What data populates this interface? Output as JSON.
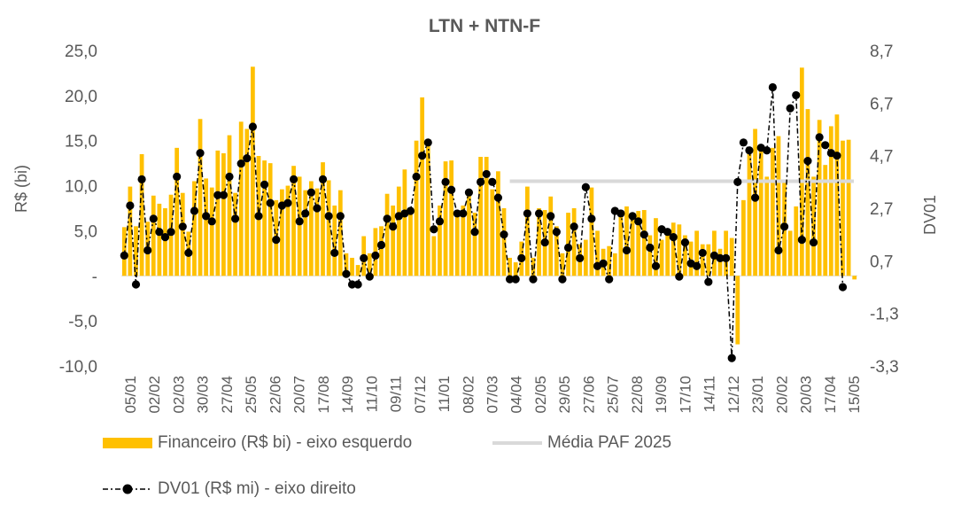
{
  "chart_data": {
    "type": "bar+line",
    "title": "LTN + NTN-F",
    "ylabel_left": "R$ (bi)",
    "ylabel_right": "DV01",
    "y_left_ticks": [
      "25,0",
      "20,0",
      "15,0",
      "10,0",
      "5,0",
      "-",
      "-5,0",
      "-10,0"
    ],
    "y_left_range": [
      -10,
      25
    ],
    "y_right_ticks": [
      "8,7",
      "6,7",
      "4,7",
      "2,7",
      "0,7",
      "-1,3",
      "-3,3"
    ],
    "y_right_range": [
      -3.3,
      8.7
    ],
    "x_tick_labels": [
      "05/01",
      "02/02",
      "02/03",
      "30/03",
      "27/04",
      "25/05",
      "22/06",
      "20/07",
      "17/08",
      "14/09",
      "11/10",
      "09/11",
      "07/12",
      "11/01",
      "08/02",
      "07/03",
      "04/04",
      "02/05",
      "29/05",
      "27/06",
      "25/07",
      "22/08",
      "19/09",
      "17/10",
      "14/11",
      "12/12",
      "23/01",
      "20/02",
      "20/03",
      "17/04",
      "15/05"
    ],
    "media_paf_2025": 10.5,
    "series": [
      {
        "name": "Financeiro (R$ bi) - eixo esquerdo",
        "color": "#FFC000",
        "values": [
          5.4,
          9.9,
          5.5,
          13.5,
          6.0,
          8.9,
          8.0,
          7.5,
          9.0,
          14.2,
          9.2,
          4.9,
          10.5,
          17.4,
          10.8,
          9.8,
          13.9,
          13.6,
          15.6,
          9.2,
          17.1,
          16.3,
          23.2,
          13.3,
          12.8,
          12.5,
          8.4,
          9.6,
          10.0,
          12.2,
          11.0,
          9.5,
          10.5,
          9.7,
          12.6,
          10.6,
          7.8,
          9.5,
          2.5,
          2.0,
          1.2,
          4.4,
          2.5,
          5.3,
          5.5,
          9.1,
          7.8,
          9.9,
          11.8,
          7.6,
          15.0,
          19.8,
          14.8,
          4.4,
          7.8,
          12.7,
          12.8,
          7.1,
          7.8,
          9.5,
          7.0,
          13.2,
          13.2,
          9.6,
          11.6,
          7.5,
          2.0,
          1.5,
          3.8,
          9.9,
          2.0,
          7.5,
          7.3,
          8.8,
          5.5,
          2.5,
          7.0,
          7.5,
          3.5,
          4.0,
          9.8,
          5.0,
          3.0,
          3.3,
          2.5,
          7.3,
          7.7,
          7.0,
          7.2,
          7.3,
          4.5,
          6.4,
          4.0,
          5.0,
          5.9,
          5.7,
          4.5,
          3.8,
          5.0,
          3.5,
          3.5,
          5.0,
          3.0,
          5.0,
          4.2,
          -7.6,
          8.4,
          13.5,
          16.3,
          14.0,
          11.0,
          14.2,
          15.5,
          10.7,
          5.0,
          7.7,
          23.1,
          18.5,
          11.0,
          17.3,
          12.3,
          16.6,
          17.9,
          15.0,
          15.1,
          -0.4
        ]
      },
      {
        "name": "DV01 (R$ mi) - eixo direito",
        "color": "#000000",
        "values": [
          0.9,
          2.8,
          -0.2,
          3.8,
          1.1,
          2.3,
          1.8,
          1.6,
          1.8,
          3.9,
          2.0,
          1.0,
          2.6,
          4.8,
          2.4,
          2.2,
          3.2,
          3.2,
          3.9,
          2.3,
          4.4,
          4.6,
          5.8,
          2.4,
          3.6,
          2.9,
          1.5,
          2.8,
          2.9,
          3.8,
          2.2,
          2.5,
          3.3,
          2.7,
          3.8,
          2.4,
          1.0,
          2.4,
          0.2,
          -0.2,
          -0.2,
          0.8,
          0.1,
          0.9,
          1.3,
          2.3,
          2.0,
          2.4,
          2.5,
          2.6,
          3.9,
          4.7,
          5.2,
          1.9,
          2.2,
          3.7,
          3.4,
          2.5,
          2.5,
          3.3,
          1.8,
          3.7,
          4.0,
          3.7,
          3.1,
          1.7,
          0.0,
          0.0,
          0.8,
          2.5,
          0.0,
          2.5,
          1.4,
          2.4,
          1.8,
          0.0,
          1.2,
          2.0,
          0.8,
          3.5,
          2.3,
          0.5,
          0.6,
          0.0,
          2.6,
          2.5,
          1.1,
          2.4,
          2.2,
          1.7,
          1.2,
          0.5,
          1.9,
          1.8,
          1.6,
          0.1,
          1.4,
          0.6,
          0.5,
          1.0,
          -0.1,
          0.9,
          0.8,
          0.8,
          -3.0,
          3.7,
          5.2,
          4.9,
          3.1,
          5.0,
          4.9,
          7.3,
          1.1,
          2.0,
          6.5,
          7.0,
          1.5,
          4.5,
          1.4,
          5.4,
          5.1,
          4.8,
          4.7,
          -0.3
        ]
      }
    ],
    "legend": {
      "bar_label": "Financeiro (R$ bi) - eixo esquerdo",
      "line_label": "Média PAF 2025",
      "dv_label": "DV01 (R$ mi) - eixo direito"
    },
    "colors": {
      "bar": "#FFC000",
      "media": "#D9D9D9",
      "dv": "#000000",
      "text": "#595959"
    }
  }
}
